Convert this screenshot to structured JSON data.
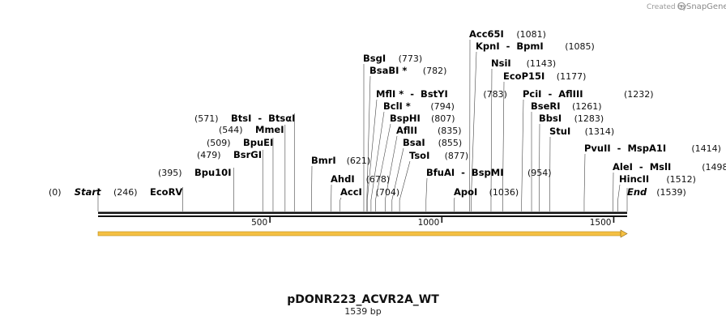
{
  "branding": {
    "created_by": "Created by",
    "product": "SnapGene"
  },
  "map": {
    "title": "pDONR223_ACVR2A_WT",
    "length_label": "1539 bp",
    "length": 1539,
    "feature_color": "#f5c043",
    "ticks": [
      {
        "value": 500,
        "label": "500"
      },
      {
        "value": 1000,
        "label": "1000"
      },
      {
        "value": 1500,
        "label": "1500"
      }
    ],
    "sites": [
      {
        "pos": "(0)",
        "name": "Start",
        "italic": true,
        "bp": 0
      },
      {
        "pos": "(246)",
        "name": "EcoRV",
        "bp": 246
      },
      {
        "pos": "(395)",
        "name": "Bpu10I",
        "bp": 395
      },
      {
        "pos": "(479)",
        "name": "BsrGI",
        "bp": 479
      },
      {
        "pos": "(509)",
        "name": "BpuEI",
        "bp": 509
      },
      {
        "pos": "(544)",
        "name": "MmeI",
        "bp": 544
      },
      {
        "pos": "(571)",
        "name": "BtsI  -  BtsαI",
        "bp": 571
      },
      {
        "pos": "(621)",
        "name": "BmrI",
        "bp": 621
      },
      {
        "pos": "(678)",
        "name": "AhdI",
        "bp": 678
      },
      {
        "pos": "(704)",
        "name": "AccI",
        "bp": 704
      },
      {
        "pos": "(773)",
        "name": "BsgI",
        "bp": 773
      },
      {
        "pos": "(782)",
        "name": "BsaBI *",
        "bp": 782
      },
      {
        "pos": "(783)",
        "name": "MflI *  -  BstYI",
        "bp": 783
      },
      {
        "pos": "(794)",
        "name": "BclI *",
        "bp": 794
      },
      {
        "pos": "(807)",
        "name": "BspHI",
        "bp": 807
      },
      {
        "pos": "(835)",
        "name": "AflII",
        "bp": 835
      },
      {
        "pos": "(855)",
        "name": "BsaI",
        "bp": 855
      },
      {
        "pos": "(877)",
        "name": "TsoI",
        "bp": 877
      },
      {
        "pos": "(954)",
        "name": "BfuAI  -  BspMI",
        "bp": 954
      },
      {
        "pos": "(1036)",
        "name": "ApoI",
        "bp": 1036
      },
      {
        "pos": "(1081)",
        "name": "Acc65I",
        "bp": 1081
      },
      {
        "pos": "(1085)",
        "name": "KpnI  -  BpmI",
        "bp": 1085
      },
      {
        "pos": "(1143)",
        "name": "NsiI",
        "bp": 1143
      },
      {
        "pos": "(1177)",
        "name": "EcoP15I",
        "bp": 1177
      },
      {
        "pos": "(1232)",
        "name": "PciI  -  AflIII",
        "bp": 1232
      },
      {
        "pos": "(1261)",
        "name": "BseRI",
        "bp": 1261
      },
      {
        "pos": "(1283)",
        "name": "BbsI",
        "bp": 1283
      },
      {
        "pos": "(1314)",
        "name": "StuI",
        "bp": 1314
      },
      {
        "pos": "(1414)",
        "name": "PvuII  -  MspA1I",
        "bp": 1414
      },
      {
        "pos": "(1498)",
        "name": "AleI  -  MslI",
        "bp": 1498
      },
      {
        "pos": "(1512)",
        "name": "HincII",
        "bp": 1512
      },
      {
        "pos": "(1539)",
        "name": "End",
        "italic": true,
        "bp": 1539
      }
    ]
  }
}
